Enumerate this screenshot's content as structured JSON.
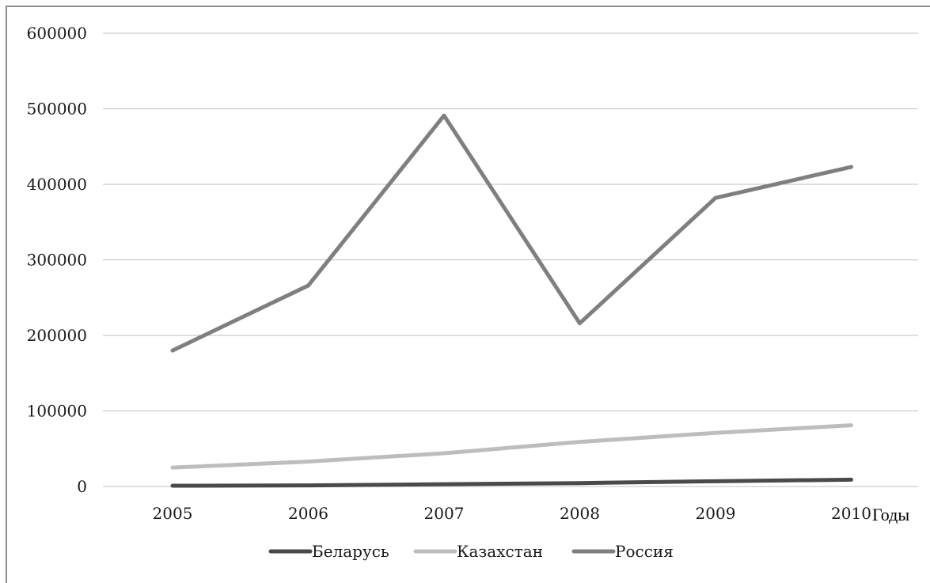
{
  "chart_data": {
    "type": "line",
    "title": "",
    "xlabel": "Годы",
    "ylabel": "",
    "categories": [
      "2005",
      "2006",
      "2007",
      "2008",
      "2009",
      "2010"
    ],
    "ylim": [
      0,
      600000
    ],
    "yticks": [
      "0",
      "100000",
      "200000",
      "300000",
      "400000",
      "500000",
      "600000"
    ],
    "grid": true,
    "legend_position": "bottom",
    "series": [
      {
        "name": "Беларусь",
        "color": "#4a4a4a",
        "values": [
          1000,
          1500,
          3000,
          4500,
          7000,
          9000
        ]
      },
      {
        "name": "Казахстан",
        "color": "#bdbdbd",
        "values": [
          25000,
          33000,
          44000,
          59000,
          71000,
          81000
        ]
      },
      {
        "name": "Россия",
        "color": "#7f7f7f",
        "values": [
          180000,
          266000,
          491000,
          216000,
          382000,
          423000
        ]
      }
    ]
  }
}
